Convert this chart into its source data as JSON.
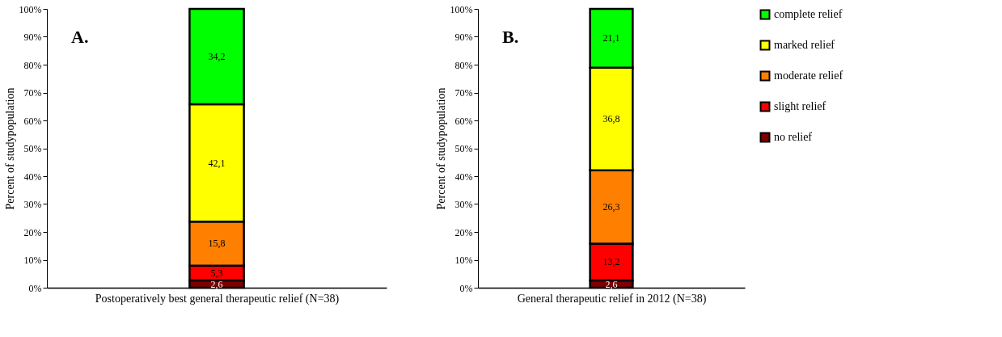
{
  "chart_data": [
    {
      "type": "bar",
      "stacked": true,
      "categories": [
        null
      ],
      "xlabel": "Postoperatively best general therapeutic relief (N=38)",
      "ylabel": "Percent of studypopulation",
      "ylim": [
        0,
        100
      ],
      "yticks": [
        {
          "value": 0,
          "label": "0%"
        },
        {
          "value": 10,
          "label": "10%"
        },
        {
          "value": 20,
          "label": "20%"
        },
        {
          "value": 30,
          "label": "30%"
        },
        {
          "value": 40,
          "label": "40%"
        },
        {
          "value": 50,
          "label": "50%"
        },
        {
          "value": 60,
          "label": "60%"
        },
        {
          "value": 70,
          "label": "70%"
        },
        {
          "value": 80,
          "label": "80%"
        },
        {
          "value": 90,
          "label": "90%"
        },
        {
          "value": 100,
          "label": "100%"
        }
      ],
      "series": [
        {
          "color": "#800000",
          "values": [
            2.6
          ],
          "value_labels": [
            "2,6"
          ]
        },
        {
          "color": "#ff0000",
          "values": [
            5.3
          ],
          "value_labels": [
            "5,3"
          ]
        },
        {
          "color": "#ff8000",
          "values": [
            15.8
          ],
          "value_labels": [
            "15,8"
          ]
        },
        {
          "color": "#ffff00",
          "values": [
            42.1
          ],
          "value_labels": [
            "42,1"
          ]
        },
        {
          "color": "#00ff00",
          "values": [
            34.2
          ],
          "value_labels": [
            "34,2"
          ]
        }
      ],
      "annotations": [
        "A."
      ],
      "grid": false,
      "legend": false
    },
    {
      "type": "bar",
      "stacked": true,
      "categories": [
        null
      ],
      "xlabel": "General therapeutic relief in 2012 (N=38)",
      "ylabel": "Percent of studypopulation",
      "ylim": [
        0,
        100
      ],
      "yticks": [
        {
          "value": 0,
          "label": "0%"
        },
        {
          "value": 10,
          "label": "10%"
        },
        {
          "value": 20,
          "label": "20%"
        },
        {
          "value": 30,
          "label": "30%"
        },
        {
          "value": 40,
          "label": "40%"
        },
        {
          "value": 50,
          "label": "50%"
        },
        {
          "value": 60,
          "label": "60%"
        },
        {
          "value": 70,
          "label": "70%"
        },
        {
          "value": 80,
          "label": "80%"
        },
        {
          "value": 90,
          "label": "90%"
        },
        {
          "value": 100,
          "label": "100%"
        }
      ],
      "series": [
        {
          "name": "no relief",
          "color": "#800000",
          "values": [
            2.6
          ],
          "value_labels": [
            "2,6"
          ]
        },
        {
          "name": "slight relief",
          "color": "#ff0000",
          "values": [
            13.2
          ],
          "value_labels": [
            "13,2"
          ]
        },
        {
          "name": "moderate relief",
          "color": "#ff8000",
          "values": [
            26.3
          ],
          "value_labels": [
            "26,3"
          ]
        },
        {
          "name": "marked relief",
          "color": "#ffff00",
          "values": [
            36.8
          ],
          "value_labels": [
            "36,8"
          ]
        },
        {
          "name": "complete relief",
          "color": "#00ff00",
          "values": [
            21.1
          ],
          "value_labels": [
            "21,1"
          ]
        }
      ],
      "annotations": [
        "B."
      ],
      "grid": false,
      "legend": "right"
    }
  ]
}
